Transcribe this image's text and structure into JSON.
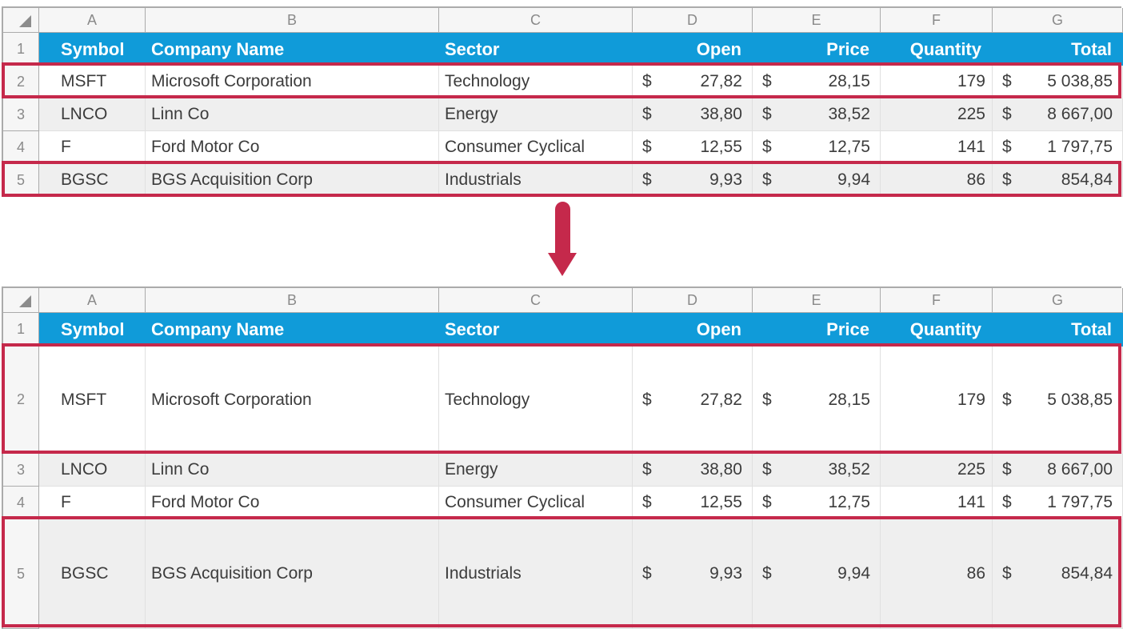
{
  "colors": {
    "header_blue": "#109BD9",
    "highlight_red": "#C5294B"
  },
  "currency_symbol": "$",
  "columns": [
    "A",
    "B",
    "C",
    "D",
    "E",
    "F",
    "G"
  ],
  "header": {
    "row_num": "1",
    "symbol": "Symbol",
    "company": "Company Name",
    "sector": "Sector",
    "open": "Open",
    "price": "Price",
    "quantity": "Quantity",
    "total": "Total"
  },
  "rows": [
    {
      "num": "2",
      "symbol": "MSFT",
      "company": "Microsoft Corporation",
      "sector": "Technology",
      "open": "27,82",
      "price": "28,15",
      "quantity": "179",
      "total": "5 038,85"
    },
    {
      "num": "3",
      "symbol": "LNCO",
      "company": "Linn Co",
      "sector": "Energy",
      "open": "38,80",
      "price": "38,52",
      "quantity": "225",
      "total": "8 667,00"
    },
    {
      "num": "4",
      "symbol": "F",
      "company": "Ford Motor Co",
      "sector": "Consumer Cyclical",
      "open": "12,55",
      "price": "12,75",
      "quantity": "141",
      "total": "1 797,75"
    },
    {
      "num": "5",
      "symbol": "BGSC",
      "company": "BGS Acquisition Corp",
      "sector": "Industrials",
      "open": "9,93",
      "price": "9,94",
      "quantity": "86",
      "total": "854,84"
    }
  ]
}
